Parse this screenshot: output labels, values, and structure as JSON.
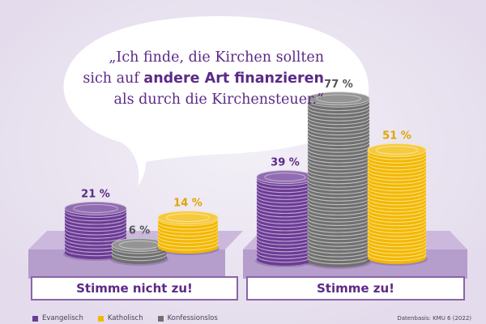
{
  "quote": {
    "part1": "„Ich finde, die Kirchen sollten",
    "part2": "sich auf ",
    "emphasis": "andere Art finanzieren",
    "part3": "als durch die Kirchensteuer.“"
  },
  "chart_data": {
    "type": "bar",
    "categories": [
      "Stimme nicht zu!",
      "Stimme zu!"
    ],
    "series": [
      {
        "name": "Evangelisch",
        "color": "#6c3b96",
        "values": [
          21,
          39
        ],
        "labels": [
          "21 %",
          "39 %"
        ]
      },
      {
        "name": "Konfessionslos",
        "color": "#707070",
        "values": [
          6,
          77
        ],
        "labels": [
          "6 %",
          "77 %"
        ]
      },
      {
        "name": "Katholisch",
        "color": "#f3b800",
        "values": [
          14,
          51
        ],
        "labels": [
          "14 %",
          "51 %"
        ]
      }
    ],
    "unit": "%",
    "ylim": [
      0,
      80
    ],
    "legend": {
      "position": "bottom-left",
      "order": [
        "Evangelisch",
        "Katholisch",
        "Konfessionslos"
      ]
    },
    "grid": false
  },
  "source": "Datenbasis: KMU 6 (2022)"
}
